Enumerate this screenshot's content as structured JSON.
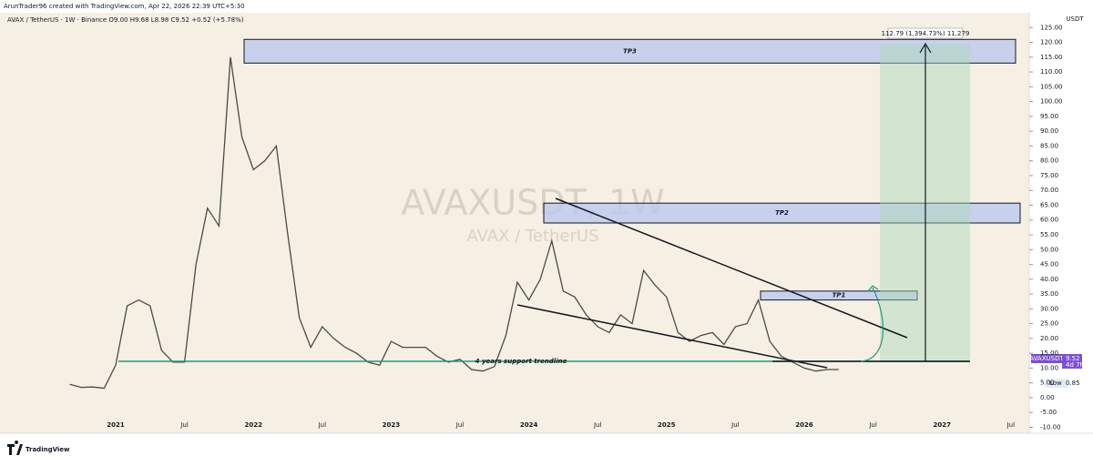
{
  "header": {
    "author_line": "ArunTrader96 created with TradingView.com, Apr 22, 2026 22:39 UTC+5:30",
    "symbol_line": "AVAX / TetherUS · 1W · Binance  O9.00  H9.68  L8.98  C9.52  +0.52 (+5.78%)"
  },
  "watermark": {
    "symbol": "AVAXUSDT, 1W",
    "description": "AVAX / TetherUS"
  },
  "price_axis": {
    "currency": "USDT",
    "tag_symbol": "AVAXUSDT",
    "tag_price": "9.52",
    "tag_countdown": "4d 7h",
    "low_label": "Low",
    "low_value": "0.85"
  },
  "annotations": {
    "trendline": "4 years support trendline",
    "measure": "112.79 (1,394.73%) 11,279"
  },
  "footer": {
    "logo": "TradingView"
  },
  "chart_data": {
    "type": "line",
    "color": "#4a4a4a",
    "categories": [
      null,
      null,
      null,
      null,
      "2021",
      null,
      null,
      null,
      null,
      null,
      "Jul",
      null,
      null,
      null,
      null,
      null,
      "2022",
      null,
      null,
      null,
      null,
      null,
      "Jul",
      null,
      null,
      null,
      null,
      null,
      "2023",
      null,
      null,
      null,
      null,
      null,
      "Jul",
      null,
      null,
      null,
      null,
      null,
      "2024",
      null,
      null,
      null,
      null,
      null,
      "Jul",
      null,
      null,
      null,
      null,
      null,
      "2025",
      null,
      null,
      null,
      null,
      null,
      "Jul",
      null,
      null,
      null,
      null,
      null,
      "2026",
      null,
      null,
      null,
      null,
      null,
      "Jul",
      null,
      null,
      null,
      null,
      null,
      "2027",
      null,
      null,
      null,
      null,
      null,
      "Jul"
    ],
    "values": [
      4.5,
      3.5,
      3.6,
      3.2,
      11,
      31,
      33,
      31,
      16,
      12,
      12,
      45,
      64,
      58,
      115,
      88,
      77,
      80,
      85,
      55,
      27,
      17,
      24,
      20,
      17,
      15,
      12,
      11,
      19,
      17,
      17,
      17,
      14,
      12,
      13,
      9.5,
      9,
      10.5,
      21,
      39,
      33,
      40,
      53,
      36,
      34,
      28,
      24,
      22,
      28,
      25,
      43,
      38,
      34,
      22,
      19,
      21,
      22,
      18,
      24,
      25,
      33,
      19,
      14,
      12,
      10,
      9,
      9.5,
      9.52,
      null,
      null,
      null,
      null,
      null,
      null,
      null,
      null,
      null,
      null,
      null,
      null,
      null,
      null,
      null
    ],
    "zones": [
      {
        "name": "TP3",
        "low": 113,
        "high": 121
      },
      {
        "name": "TP2",
        "low": 59,
        "high": 65.7
      },
      {
        "name": "TP1",
        "low": 33,
        "high": 36
      }
    ],
    "ylim": [
      -12,
      130
    ],
    "yticks": [
      {
        "value": 125,
        "label": "125.00"
      },
      {
        "value": 120,
        "label": "120.00"
      },
      {
        "value": 115,
        "label": "115.00"
      },
      {
        "value": 110,
        "label": "110.00"
      },
      {
        "value": 105,
        "label": "105.00"
      },
      {
        "value": 100,
        "label": "100.00"
      },
      {
        "value": 95,
        "label": "95.00"
      },
      {
        "value": 90,
        "label": "90.00"
      },
      {
        "value": 85,
        "label": "85.00"
      },
      {
        "value": 80,
        "label": "80.00"
      },
      {
        "value": 75,
        "label": "75.00"
      },
      {
        "value": 70,
        "label": "70.00"
      },
      {
        "value": 65,
        "label": "65.00"
      },
      {
        "value": 60,
        "label": "60.00"
      },
      {
        "value": 55,
        "label": "55.00"
      },
      {
        "value": 50,
        "label": "50.00"
      },
      {
        "value": 45,
        "label": "45.00"
      },
      {
        "value": 40,
        "label": "40.00"
      },
      {
        "value": 35,
        "label": "35.00"
      },
      {
        "value": 30,
        "label": "30.00"
      },
      {
        "value": 25,
        "label": "25.00"
      },
      {
        "value": 20,
        "label": "20.00"
      },
      {
        "value": 15,
        "label": "15.00"
      },
      {
        "value": 10,
        "label": "10.00"
      },
      {
        "value": 5,
        "label": "5.00"
      },
      {
        "value": 0,
        "label": "0.00"
      },
      {
        "value": -5,
        "label": "-5.00"
      },
      {
        "value": -10,
        "label": "-10.00"
      }
    ]
  }
}
